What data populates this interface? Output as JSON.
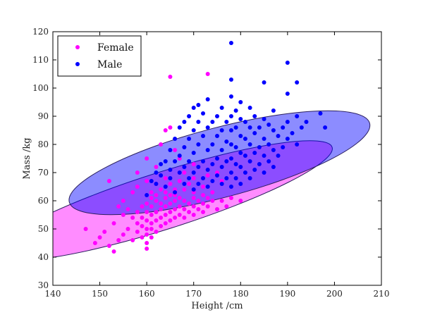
{
  "chart_data": {
    "type": "scatter",
    "xlabel": "Height /cm",
    "ylabel": "Mass /kg",
    "xlim": [
      140,
      210
    ],
    "ylim": [
      30,
      120
    ],
    "xticks": [
      140,
      150,
      160,
      170,
      180,
      190,
      200,
      210
    ],
    "yticks": [
      30,
      40,
      50,
      60,
      70,
      80,
      90,
      100,
      110,
      120
    ],
    "grid": false,
    "legend": {
      "placement": "top-left"
    },
    "series": [
      {
        "name": "Female",
        "color": "#ff00ff",
        "ellipse": {
          "center": [
            163.5,
            60.0
          ],
          "semi_major": [
            36.0,
            19.0
          ],
          "semi_minor": [
            -4.0,
            7.6
          ],
          "fill_opacity": 0.45
        },
        "points": [
          [
            147,
            50
          ],
          [
            149,
            45
          ],
          [
            150,
            47
          ],
          [
            151,
            49
          ],
          [
            152,
            44
          ],
          [
            153,
            42
          ],
          [
            154,
            46
          ],
          [
            155,
            48
          ],
          [
            156,
            50
          ],
          [
            157,
            46
          ],
          [
            158,
            49
          ],
          [
            158,
            52
          ],
          [
            159,
            47
          ],
          [
            159,
            51
          ],
          [
            159,
            54
          ],
          [
            160,
            43
          ],
          [
            160,
            45
          ],
          [
            160,
            48
          ],
          [
            160,
            50
          ],
          [
            160,
            53
          ],
          [
            160,
            56
          ],
          [
            161,
            47
          ],
          [
            161,
            50
          ],
          [
            161,
            52
          ],
          [
            161,
            55
          ],
          [
            161,
            58
          ],
          [
            162,
            49
          ],
          [
            162,
            53
          ],
          [
            162,
            56
          ],
          [
            162,
            60
          ],
          [
            163,
            51
          ],
          [
            163,
            54
          ],
          [
            163,
            57
          ],
          [
            164,
            52
          ],
          [
            164,
            55
          ],
          [
            164,
            58
          ],
          [
            164,
            61
          ],
          [
            165,
            53
          ],
          [
            165,
            56
          ],
          [
            165,
            59
          ],
          [
            165,
            62
          ],
          [
            166,
            54
          ],
          [
            166,
            57
          ],
          [
            166,
            60
          ],
          [
            167,
            55
          ],
          [
            167,
            58
          ],
          [
            167,
            61
          ],
          [
            168,
            54
          ],
          [
            168,
            57
          ],
          [
            168,
            60
          ],
          [
            169,
            56
          ],
          [
            169,
            59
          ],
          [
            170,
            55
          ],
          [
            170,
            58
          ],
          [
            170,
            61
          ],
          [
            171,
            57
          ],
          [
            171,
            60
          ],
          [
            172,
            56
          ],
          [
            172,
            59
          ],
          [
            173,
            58
          ],
          [
            173,
            61
          ],
          [
            174,
            60
          ],
          [
            175,
            57
          ],
          [
            176,
            60
          ],
          [
            177,
            58
          ],
          [
            178,
            61
          ],
          [
            180,
            60
          ],
          [
            156,
            57
          ],
          [
            157,
            54
          ],
          [
            158,
            56
          ],
          [
            155,
            55
          ],
          [
            154,
            58
          ],
          [
            153,
            52
          ],
          [
            152,
            67
          ],
          [
            155,
            60
          ],
          [
            157,
            63
          ],
          [
            158,
            65
          ],
          [
            160,
            67
          ],
          [
            161,
            63
          ],
          [
            162,
            66
          ],
          [
            163,
            64
          ],
          [
            164,
            68
          ],
          [
            165,
            66
          ],
          [
            166,
            64
          ],
          [
            167,
            67
          ],
          [
            168,
            70
          ],
          [
            169,
            66
          ],
          [
            170,
            68
          ],
          [
            171,
            72
          ],
          [
            172,
            65
          ],
          [
            173,
            69
          ],
          [
            174,
            63
          ],
          [
            176,
            67
          ],
          [
            158,
            70
          ],
          [
            160,
            75
          ],
          [
            162,
            72
          ],
          [
            163,
            80
          ],
          [
            164,
            85
          ],
          [
            165,
            86
          ],
          [
            166,
            78
          ],
          [
            167,
            75
          ],
          [
            165,
            104
          ],
          [
            173,
            105
          ],
          [
            170,
            73
          ],
          [
            175,
            70
          ],
          [
            159,
            58
          ],
          [
            161,
            61
          ],
          [
            163,
            59
          ],
          [
            164,
            63
          ],
          [
            166,
            62
          ],
          [
            168,
            64
          ],
          [
            170,
            63
          ],
          [
            172,
            62
          ],
          [
            162,
            62
          ],
          [
            160,
            59
          ]
        ]
      },
      {
        "name": "Male",
        "color": "#0000ff",
        "ellipse": {
          "center": [
            175.5,
            73.5
          ],
          "semi_major": [
            32.0,
            14.0
          ],
          "semi_minor": [
            -4.4,
            10.0
          ],
          "fill_opacity": 0.45
        },
        "points": [
          [
            160,
            62
          ],
          [
            162,
            66
          ],
          [
            163,
            69
          ],
          [
            164,
            65
          ],
          [
            165,
            68
          ],
          [
            165,
            71
          ],
          [
            166,
            74
          ],
          [
            166,
            63
          ],
          [
            167,
            70
          ],
          [
            167,
            76
          ],
          [
            168,
            66
          ],
          [
            168,
            72
          ],
          [
            168,
            79
          ],
          [
            169,
            68
          ],
          [
            169,
            74
          ],
          [
            169,
            82
          ],
          [
            170,
            64
          ],
          [
            170,
            70
          ],
          [
            170,
            77
          ],
          [
            170,
            85
          ],
          [
            171,
            66
          ],
          [
            171,
            72
          ],
          [
            171,
            80
          ],
          [
            171,
            88
          ],
          [
            172,
            68
          ],
          [
            172,
            74
          ],
          [
            172,
            83
          ],
          [
            172,
            91
          ],
          [
            173,
            65
          ],
          [
            173,
            71
          ],
          [
            173,
            78
          ],
          [
            173,
            86
          ],
          [
            173,
            96
          ],
          [
            174,
            67
          ],
          [
            174,
            73
          ],
          [
            174,
            80
          ],
          [
            174,
            88
          ],
          [
            175,
            69
          ],
          [
            175,
            75
          ],
          [
            175,
            83
          ],
          [
            175,
            90
          ],
          [
            176,
            66
          ],
          [
            176,
            72
          ],
          [
            176,
            78
          ],
          [
            176,
            85
          ],
          [
            176,
            93
          ],
          [
            177,
            68
          ],
          [
            177,
            74
          ],
          [
            177,
            81
          ],
          [
            177,
            88
          ],
          [
            178,
            65
          ],
          [
            178,
            70
          ],
          [
            178,
            75
          ],
          [
            178,
            80
          ],
          [
            178,
            85
          ],
          [
            178,
            90
          ],
          [
            178,
            97
          ],
          [
            178,
            103
          ],
          [
            178,
            116
          ],
          [
            179,
            68
          ],
          [
            179,
            73
          ],
          [
            179,
            79
          ],
          [
            179,
            86
          ],
          [
            179,
            92
          ],
          [
            180,
            66
          ],
          [
            180,
            72
          ],
          [
            180,
            77
          ],
          [
            180,
            83
          ],
          [
            180,
            89
          ],
          [
            180,
            95
          ],
          [
            181,
            70
          ],
          [
            181,
            76
          ],
          [
            181,
            82
          ],
          [
            181,
            88
          ],
          [
            182,
            68
          ],
          [
            182,
            74
          ],
          [
            182,
            80
          ],
          [
            182,
            86
          ],
          [
            182,
            93
          ],
          [
            183,
            71
          ],
          [
            183,
            77
          ],
          [
            183,
            84
          ],
          [
            183,
            90
          ],
          [
            184,
            73
          ],
          [
            184,
            79
          ],
          [
            184,
            86
          ],
          [
            185,
            70
          ],
          [
            185,
            76
          ],
          [
            185,
            82
          ],
          [
            185,
            89
          ],
          [
            185,
            102
          ],
          [
            186,
            74
          ],
          [
            186,
            80
          ],
          [
            186,
            87
          ],
          [
            187,
            72
          ],
          [
            187,
            78
          ],
          [
            187,
            85
          ],
          [
            187,
            92
          ],
          [
            188,
            76
          ],
          [
            188,
            83
          ],
          [
            189,
            79
          ],
          [
            189,
            86
          ],
          [
            190,
            82
          ],
          [
            190,
            88
          ],
          [
            190,
            98
          ],
          [
            190,
            109
          ],
          [
            191,
            84
          ],
          [
            192,
            80
          ],
          [
            192,
            90
          ],
          [
            192,
            102
          ],
          [
            193,
            86
          ],
          [
            194,
            88
          ],
          [
            197,
            91
          ],
          [
            198,
            86
          ],
          [
            166,
            82
          ],
          [
            167,
            86
          ],
          [
            168,
            88
          ],
          [
            169,
            90
          ],
          [
            170,
            93
          ],
          [
            171,
            94
          ],
          [
            164,
            74
          ],
          [
            165,
            78
          ],
          [
            163,
            73
          ],
          [
            162,
            70
          ],
          [
            161,
            67
          ]
        ]
      }
    ]
  }
}
